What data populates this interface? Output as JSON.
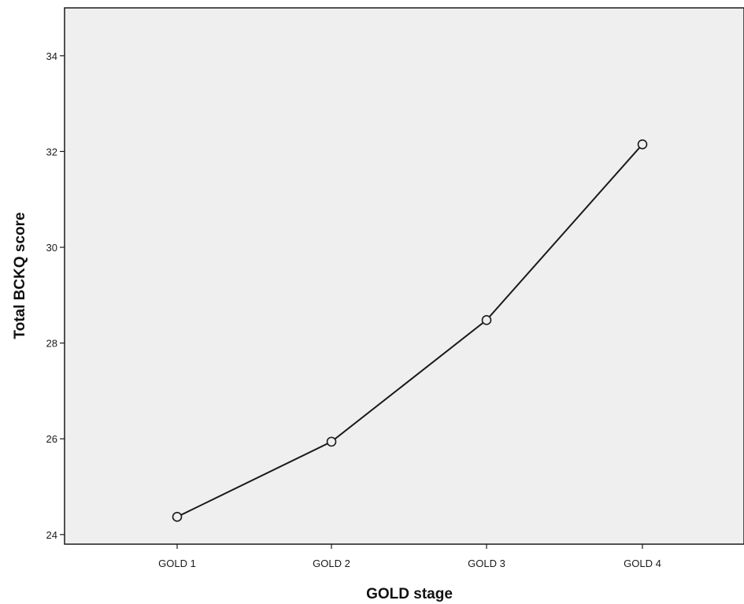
{
  "chart_data": {
    "type": "line",
    "categories": [
      "GOLD 1",
      "GOLD 2",
      "GOLD 3",
      "GOLD 4"
    ],
    "values": [
      24.37,
      25.94,
      28.48,
      32.15
    ],
    "xlabel": "GOLD stage",
    "ylabel": "Total BCKQ score",
    "ylim": [
      23.8,
      35.0
    ],
    "yticks": [
      "24",
      "26",
      "28",
      "30",
      "32",
      "34"
    ],
    "marker": "open-circle",
    "grid": false,
    "legend": "none",
    "colors": {
      "plot_background": "#efefef",
      "line": "#1a1a1a",
      "axis": "#1a1a1a"
    }
  }
}
